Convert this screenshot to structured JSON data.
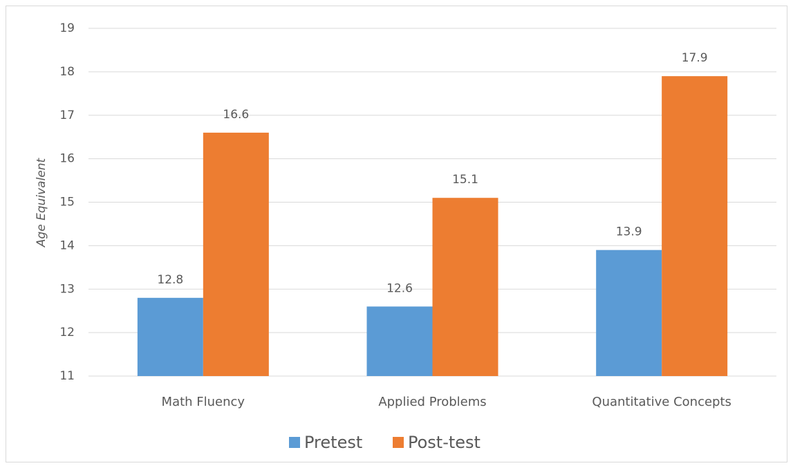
{
  "chart_data": {
    "type": "bar",
    "y_label": "Age Equivalent",
    "categories": [
      "Math Fluency",
      "Applied Problems",
      "Quantitative Concepts"
    ],
    "series": [
      {
        "name": "Pretest",
        "color": "#5b9bd5",
        "values": [
          12.8,
          12.6,
          13.9
        ]
      },
      {
        "name": "Post-test",
        "color": "#ed7d31",
        "values": [
          16.6,
          15.1,
          17.9
        ]
      }
    ],
    "ylim": [
      11,
      19
    ],
    "yticks": [
      11,
      12,
      13,
      14,
      15,
      16,
      17,
      18,
      19
    ],
    "grid": true,
    "legend": "bottom"
  }
}
